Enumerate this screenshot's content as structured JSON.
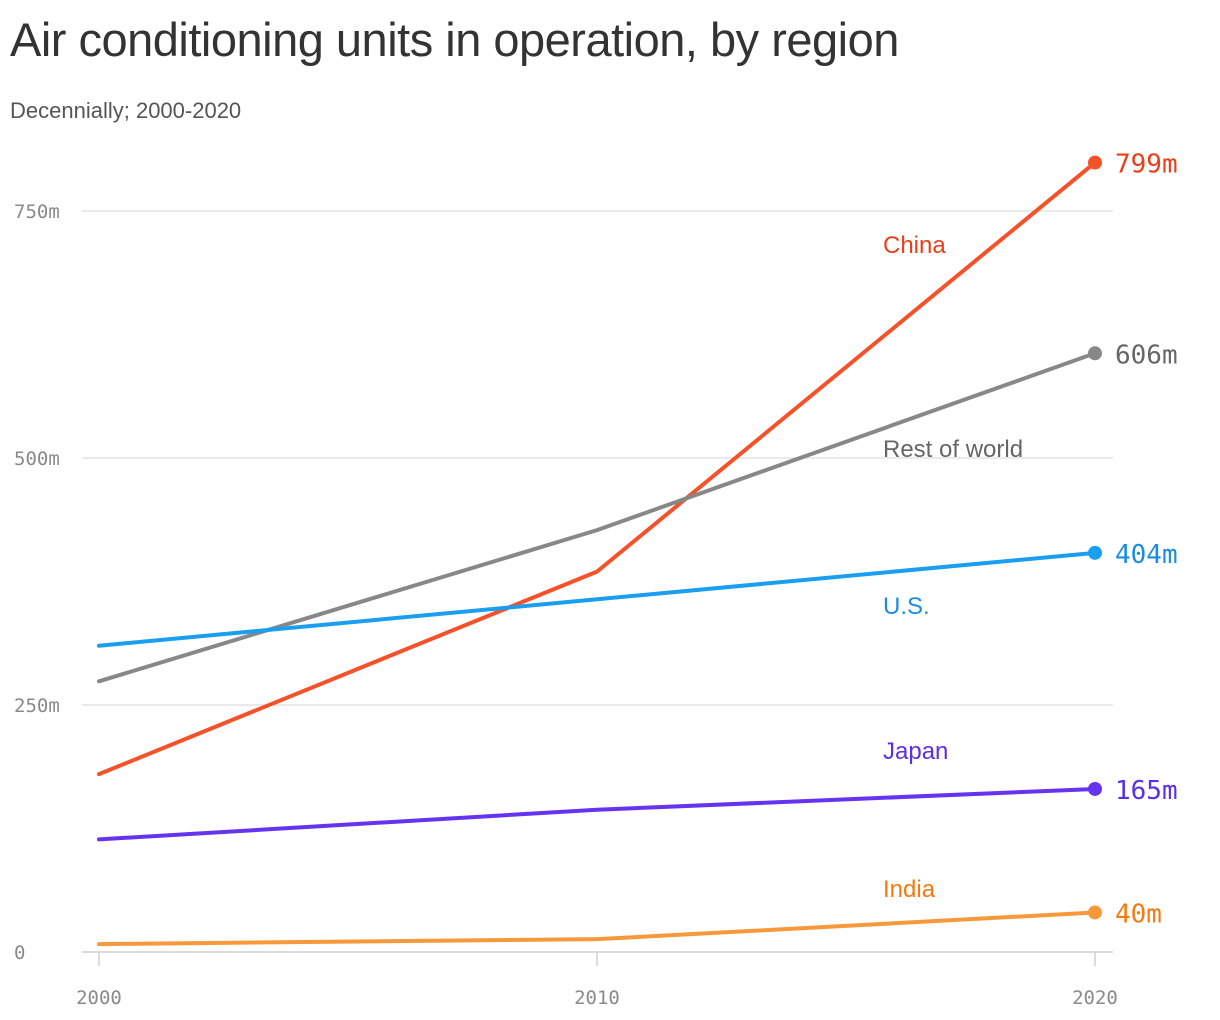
{
  "title": "Air conditioning units in operation, by region",
  "subtitle": "Decennially; 2000-2020",
  "chart_data": {
    "type": "line",
    "title": "Air conditioning units in operation, by region",
    "subtitle": "Decennially; 2000-2020",
    "x": [
      2000,
      2010,
      2020
    ],
    "x_tick_labels": [
      "2000",
      "2010",
      "2020"
    ],
    "ylim": [
      0,
      800
    ],
    "y_ticks": [
      0,
      250,
      500,
      750
    ],
    "y_tick_labels": [
      "0",
      "250m",
      "500m",
      "750m"
    ],
    "grid": "horizontal",
    "series": [
      {
        "name": "China",
        "values": [
          180,
          385,
          799
        ],
        "end_label": "799m",
        "color": "#f5522a",
        "label_color": "#e8401a"
      },
      {
        "name": "Rest of world",
        "values": [
          274,
          427,
          606
        ],
        "end_label": "606m",
        "color": "#888888",
        "label_color": "#666666"
      },
      {
        "name": "U.S.",
        "values": [
          310,
          357,
          404
        ],
        "end_label": "404m",
        "color": "#1a9ff0",
        "label_color": "#1a8de0"
      },
      {
        "name": "Japan",
        "values": [
          114,
          144,
          165
        ],
        "end_label": "165m",
        "color": "#6633f0",
        "label_color": "#5b2ee8"
      },
      {
        "name": "India",
        "values": [
          8,
          13,
          40
        ],
        "end_label": "40m",
        "color": "#f7983a",
        "label_color": "#f57a10"
      }
    ]
  }
}
